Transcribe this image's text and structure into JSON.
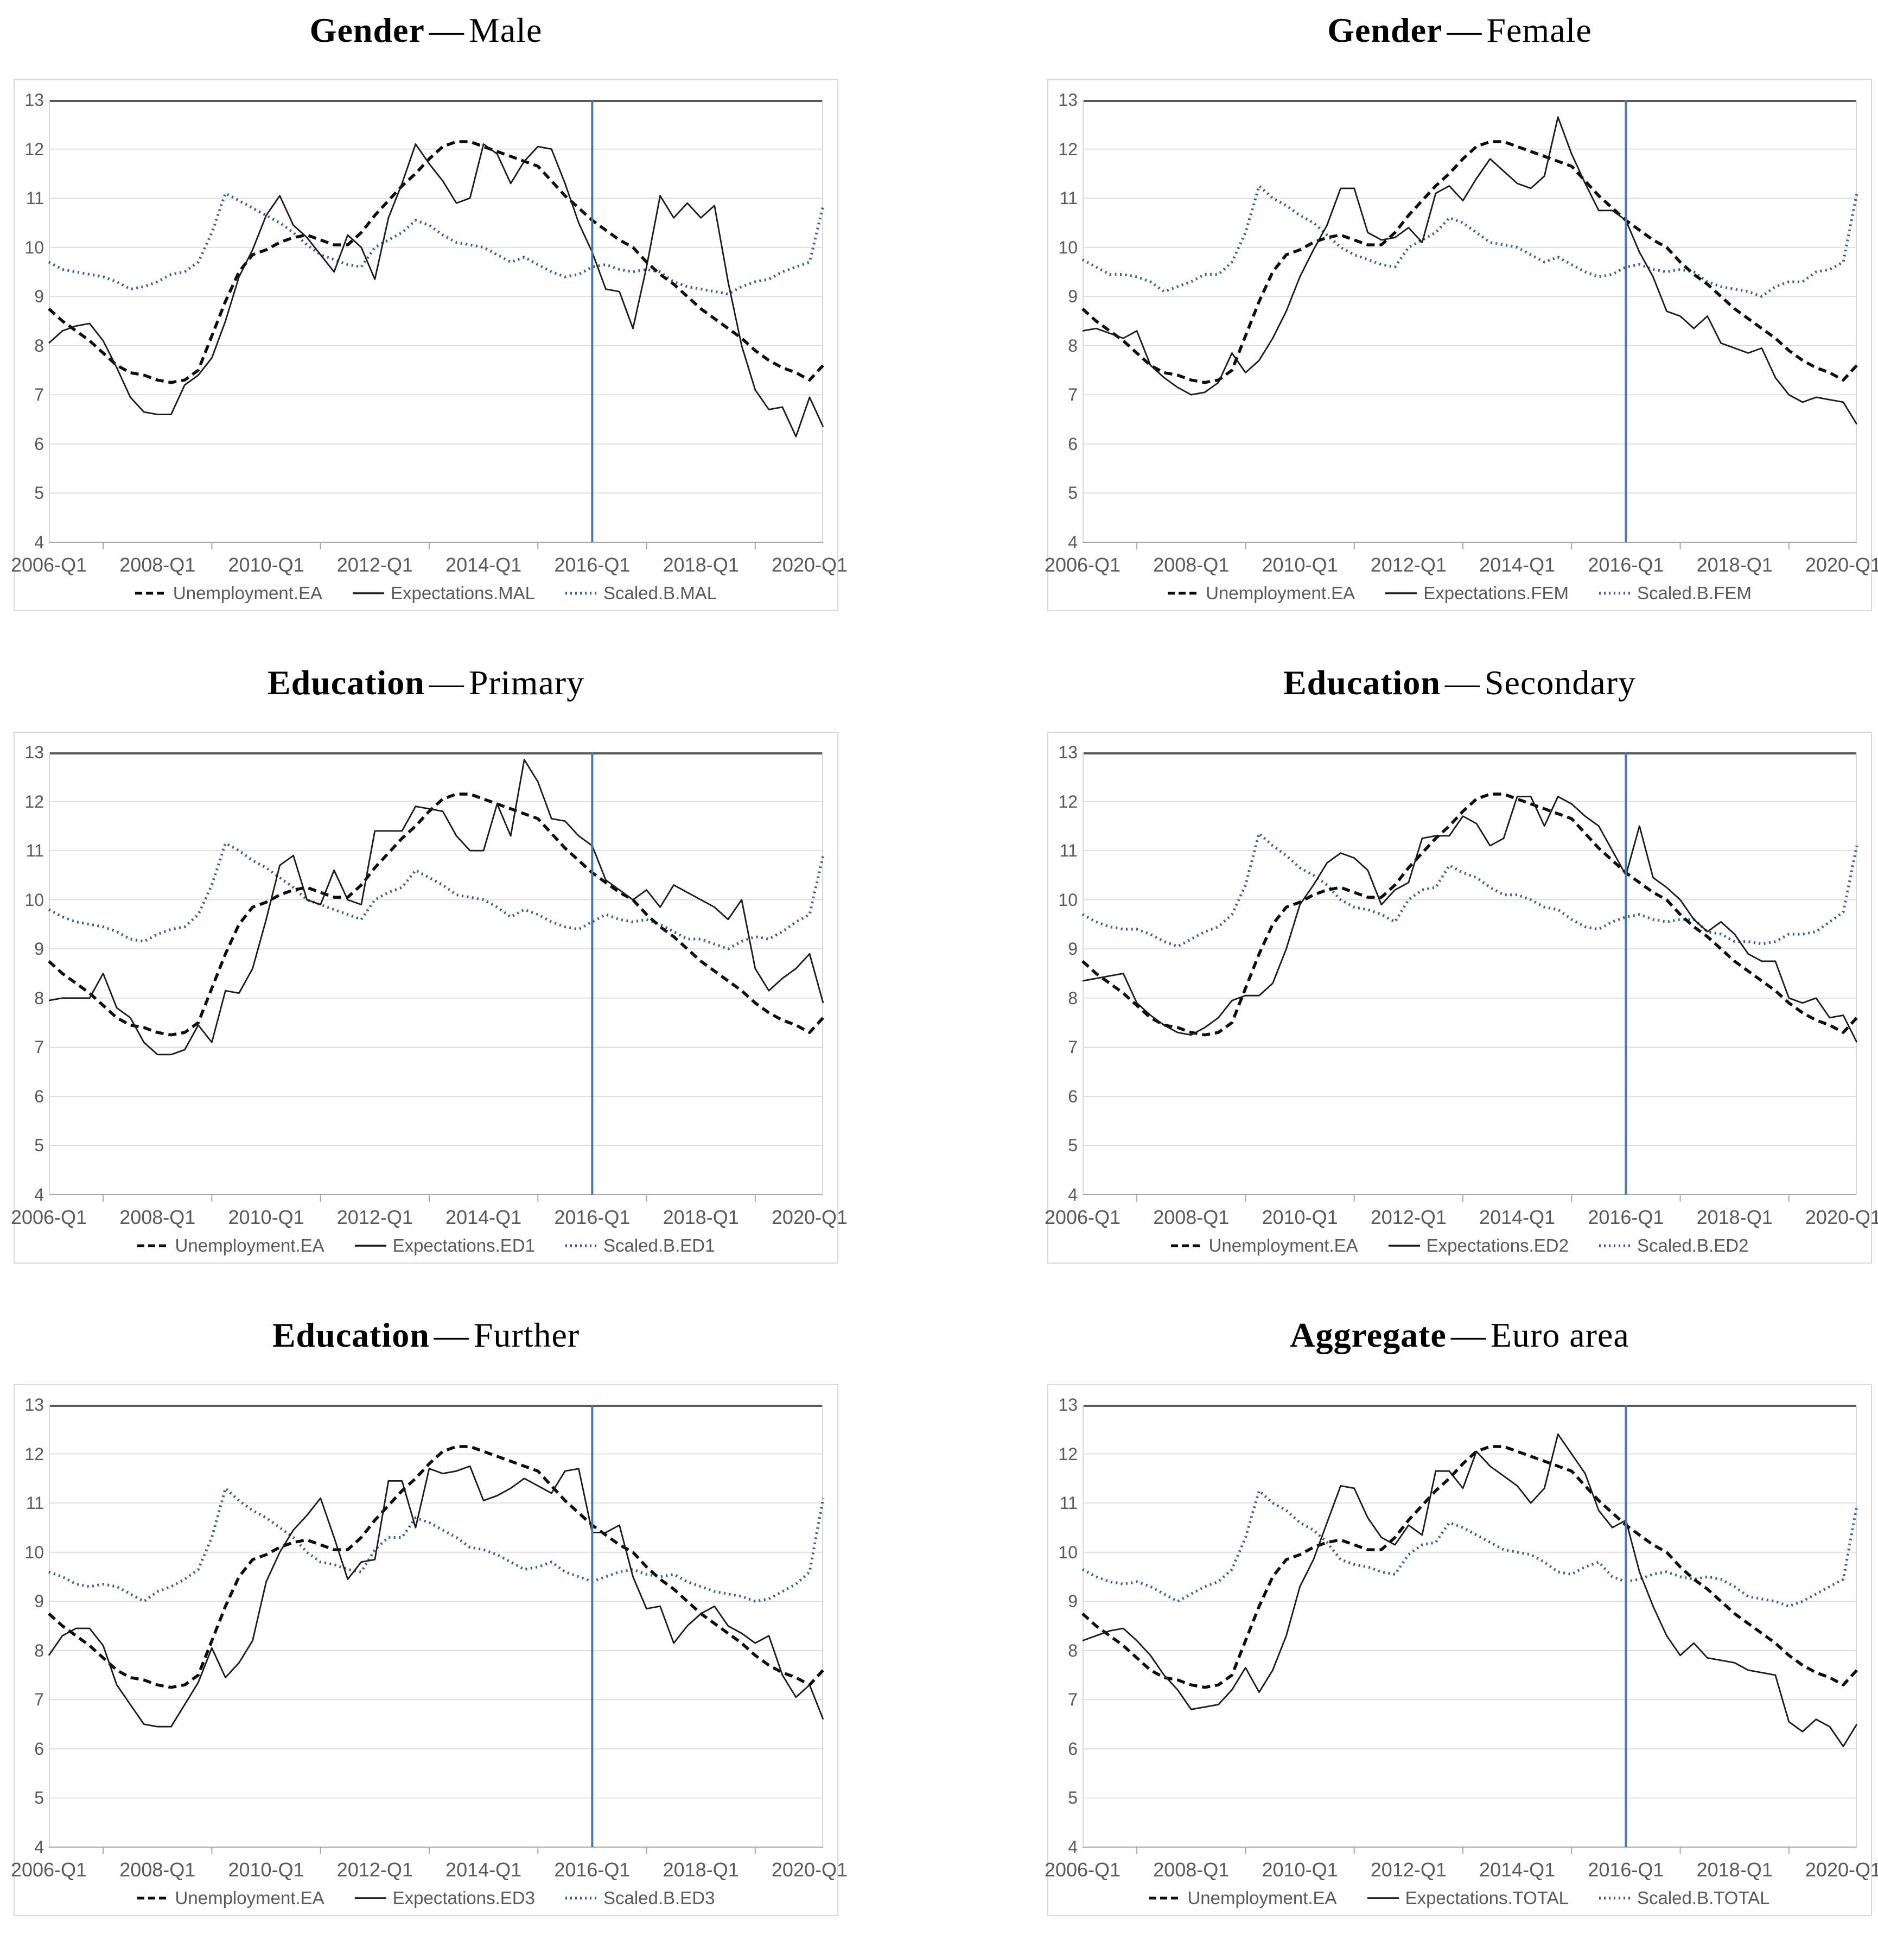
{
  "figure": {
    "description_title_rows": [
      "Gender",
      "Education",
      "Aggregate"
    ]
  },
  "chart_data": {
    "type": "line",
    "grid": true,
    "legend_position": "bottom",
    "ylim": [
      4,
      13
    ],
    "y_ticks": [
      13,
      12,
      11,
      10,
      9,
      8,
      7,
      6,
      5,
      4
    ],
    "x_points": 58,
    "x_tick_labels": [
      "2006-Q1",
      "2008-Q1",
      "2010-Q1",
      "2012-Q1",
      "2014-Q1",
      "2016-Q1",
      "2018-Q1",
      "2020-Q1"
    ],
    "x_tick_label_indices": [
      0,
      8,
      16,
      24,
      32,
      40,
      48,
      56
    ],
    "x_minor_tick_indices": [
      4,
      12,
      20,
      28,
      36,
      44,
      52
    ],
    "vline_index": 40,
    "colors": {
      "unemployment_line": "#0d0d0d",
      "expectations_line": "#1a1a1a",
      "scaled_b_line": "#366092",
      "event_vline": "#4679a8",
      "gridline": "#d9d9d9",
      "plot_top_border": "#595959",
      "axis_line": "#a6a6a6",
      "axis_text": "#595959"
    },
    "shared_series": {
      "name": "Unemployment.EA",
      "values": [
        8.75,
        8.5,
        8.3,
        8.1,
        7.85,
        7.6,
        7.45,
        7.4,
        7.3,
        7.25,
        7.3,
        7.5,
        8.2,
        8.9,
        9.5,
        9.85,
        9.95,
        10.1,
        10.2,
        10.25,
        10.15,
        10.05,
        10.05,
        10.3,
        10.65,
        10.95,
        11.25,
        11.5,
        11.8,
        12.05,
        12.15,
        12.15,
        12.05,
        11.95,
        11.85,
        11.75,
        11.65,
        11.35,
        11.05,
        10.8,
        10.55,
        10.35,
        10.15,
        10.0,
        9.7,
        9.45,
        9.25,
        9.0,
        8.75,
        8.55,
        8.35,
        8.15,
        7.9,
        7.7,
        7.55,
        7.45,
        7.3,
        7.6
      ]
    },
    "charts": [
      {
        "title_bold": "Gender",
        "title_sep": "—",
        "title_rest": "Male",
        "legend": [
          "Unemployment.EA",
          "Expectations.MAL",
          "Scaled.B.MAL"
        ],
        "expectations": {
          "name": "Expectations.MAL",
          "values": [
            8.05,
            8.3,
            8.4,
            8.45,
            8.1,
            7.55,
            6.95,
            6.65,
            6.6,
            6.6,
            7.2,
            7.4,
            7.75,
            8.5,
            9.4,
            9.95,
            10.65,
            11.05,
            10.45,
            10.2,
            9.85,
            9.5,
            10.25,
            10.0,
            9.35,
            10.6,
            11.3,
            12.1,
            11.7,
            11.35,
            10.9,
            11.0,
            12.1,
            11.9,
            11.3,
            11.75,
            12.05,
            12.0,
            11.3,
            10.5,
            9.9,
            9.15,
            9.1,
            8.35,
            9.6,
            11.05,
            10.6,
            10.9,
            10.6,
            10.85,
            9.3,
            8.0,
            7.1,
            6.7,
            6.75,
            6.15,
            6.95,
            6.35
          ]
        },
        "scaled_b": {
          "name": "Scaled.B.MAL",
          "values": [
            9.7,
            9.55,
            9.5,
            9.45,
            9.4,
            9.3,
            9.15,
            9.2,
            9.3,
            9.45,
            9.5,
            9.7,
            10.3,
            11.1,
            10.95,
            10.8,
            10.65,
            10.5,
            10.3,
            10.05,
            9.85,
            9.75,
            9.65,
            9.6,
            10.0,
            10.15,
            10.3,
            10.55,
            10.45,
            10.25,
            10.1,
            10.05,
            10.0,
            9.85,
            9.7,
            9.8,
            9.65,
            9.5,
            9.4,
            9.45,
            9.6,
            9.65,
            9.55,
            9.5,
            9.55,
            9.5,
            9.3,
            9.2,
            9.15,
            9.1,
            9.05,
            9.2,
            9.3,
            9.35,
            9.5,
            9.6,
            9.7,
            10.85
          ]
        }
      },
      {
        "title_bold": "Gender",
        "title_sep": "—",
        "title_rest": "Female",
        "legend": [
          "Unemployment.EA",
          "Expectations.FEM",
          "Scaled.B.FEM"
        ],
        "expectations": {
          "name": "Expectations.FEM",
          "values": [
            8.3,
            8.35,
            8.25,
            8.15,
            8.3,
            7.6,
            7.35,
            7.15,
            7.0,
            7.05,
            7.25,
            7.85,
            7.45,
            7.7,
            8.15,
            8.7,
            9.4,
            9.95,
            10.45,
            11.2,
            11.2,
            10.3,
            10.15,
            10.2,
            10.4,
            10.1,
            11.1,
            11.25,
            10.95,
            11.4,
            11.8,
            11.55,
            11.3,
            11.2,
            11.45,
            12.65,
            11.9,
            11.3,
            10.75,
            10.75,
            10.55,
            9.9,
            9.4,
            8.7,
            8.6,
            8.35,
            8.6,
            8.05,
            7.95,
            7.85,
            7.95,
            7.35,
            7.0,
            6.85,
            6.95,
            6.9,
            6.85,
            6.4
          ]
        },
        "scaled_b": {
          "name": "Scaled.B.FEM",
          "values": [
            9.75,
            9.6,
            9.45,
            9.45,
            9.4,
            9.3,
            9.1,
            9.2,
            9.3,
            9.45,
            9.45,
            9.7,
            10.3,
            11.25,
            11.0,
            10.85,
            10.65,
            10.5,
            10.25,
            10.0,
            9.85,
            9.75,
            9.65,
            9.6,
            10.0,
            10.15,
            10.3,
            10.6,
            10.5,
            10.3,
            10.1,
            10.05,
            10.0,
            9.85,
            9.7,
            9.8,
            9.65,
            9.5,
            9.4,
            9.45,
            9.6,
            9.65,
            9.55,
            9.5,
            9.55,
            9.5,
            9.3,
            9.2,
            9.15,
            9.1,
            9.0,
            9.2,
            9.3,
            9.3,
            9.5,
            9.55,
            9.7,
            11.1
          ]
        }
      },
      {
        "title_bold": "Education",
        "title_sep": "—",
        "title_rest": "Primary",
        "legend": [
          "Unemployment.EA",
          "Expectations.ED1",
          "Scaled.B.ED1"
        ],
        "expectations": {
          "name": "Expectations.ED1",
          "values": [
            7.95,
            8.0,
            8.0,
            8.0,
            8.5,
            7.8,
            7.6,
            7.1,
            6.85,
            6.85,
            6.95,
            7.45,
            7.1,
            8.15,
            8.1,
            8.6,
            9.6,
            10.7,
            10.9,
            10.0,
            9.9,
            10.6,
            10.0,
            9.9,
            11.4,
            11.4,
            11.4,
            11.9,
            11.85,
            11.8,
            11.3,
            11.0,
            11.0,
            11.95,
            11.3,
            12.85,
            12.4,
            11.65,
            11.6,
            11.3,
            11.1,
            10.4,
            10.2,
            10.0,
            10.2,
            9.85,
            10.3,
            10.15,
            10.0,
            9.85,
            9.6,
            10.0,
            8.6,
            8.15,
            8.4,
            8.6,
            8.9,
            7.9
          ]
        },
        "scaled_b": {
          "name": "Scaled.B.ED1",
          "values": [
            9.8,
            9.65,
            9.55,
            9.5,
            9.45,
            9.35,
            9.2,
            9.15,
            9.3,
            9.4,
            9.45,
            9.7,
            10.3,
            11.15,
            11.0,
            10.8,
            10.65,
            10.45,
            10.25,
            10.0,
            9.9,
            9.8,
            9.7,
            9.6,
            10.0,
            10.15,
            10.25,
            10.6,
            10.45,
            10.3,
            10.1,
            10.05,
            10.0,
            9.85,
            9.65,
            9.8,
            9.7,
            9.55,
            9.45,
            9.4,
            9.55,
            9.7,
            9.6,
            9.55,
            9.6,
            9.5,
            9.35,
            9.2,
            9.2,
            9.1,
            9.0,
            9.15,
            9.25,
            9.2,
            9.35,
            9.55,
            9.7,
            10.9
          ]
        }
      },
      {
        "title_bold": "Education",
        "title_sep": "—",
        "title_rest": "Secondary",
        "legend": [
          "Unemployment.EA",
          "Expectations.ED2",
          "Scaled.B.ED2"
        ],
        "expectations": {
          "name": "Expectations.ED2",
          "values": [
            8.35,
            8.4,
            8.45,
            8.5,
            7.9,
            7.65,
            7.45,
            7.3,
            7.25,
            7.4,
            7.6,
            7.95,
            8.05,
            8.05,
            8.3,
            9.0,
            9.9,
            10.3,
            10.75,
            10.95,
            10.85,
            10.6,
            9.9,
            10.2,
            10.35,
            11.25,
            11.3,
            11.3,
            11.7,
            11.55,
            11.1,
            11.25,
            12.1,
            12.1,
            11.5,
            12.1,
            11.95,
            11.7,
            11.5,
            11.0,
            10.5,
            11.5,
            10.45,
            10.25,
            10.0,
            9.6,
            9.35,
            9.55,
            9.3,
            8.9,
            8.75,
            8.75,
            8.0,
            7.9,
            8.0,
            7.6,
            7.65,
            7.1
          ]
        },
        "scaled_b": {
          "name": "Scaled.B.ED2",
          "values": [
            9.7,
            9.55,
            9.45,
            9.4,
            9.4,
            9.3,
            9.15,
            9.05,
            9.2,
            9.35,
            9.45,
            9.7,
            10.3,
            11.35,
            11.1,
            10.9,
            10.65,
            10.5,
            10.3,
            10.0,
            9.85,
            9.8,
            9.7,
            9.55,
            10.0,
            10.2,
            10.25,
            10.7,
            10.55,
            10.45,
            10.25,
            10.1,
            10.1,
            10.0,
            9.85,
            9.8,
            9.6,
            9.45,
            9.4,
            9.55,
            9.65,
            9.7,
            9.6,
            9.55,
            9.6,
            9.6,
            9.35,
            9.3,
            9.15,
            9.15,
            9.1,
            9.15,
            9.3,
            9.3,
            9.35,
            9.55,
            9.75,
            11.1
          ]
        }
      },
      {
        "title_bold": "Education",
        "title_sep": "—",
        "title_rest": "Further",
        "legend": [
          "Unemployment.EA",
          "Expectations.ED3",
          "Scaled.B.ED3"
        ],
        "expectations": {
          "name": "Expectations.ED3",
          "values": [
            7.9,
            8.3,
            8.45,
            8.45,
            8.1,
            7.3,
            6.9,
            6.5,
            6.45,
            6.45,
            6.9,
            7.35,
            8.05,
            7.45,
            7.75,
            8.2,
            9.4,
            10.0,
            10.45,
            10.75,
            11.1,
            10.3,
            9.45,
            9.8,
            9.85,
            11.45,
            11.45,
            10.5,
            11.7,
            11.6,
            11.65,
            11.75,
            11.05,
            11.15,
            11.3,
            11.5,
            11.35,
            11.2,
            11.65,
            11.7,
            10.4,
            10.4,
            10.55,
            9.5,
            8.85,
            8.9,
            8.15,
            8.5,
            8.75,
            8.9,
            8.5,
            8.35,
            8.15,
            8.3,
            7.5,
            7.05,
            7.3,
            6.6
          ]
        },
        "scaled_b": {
          "name": "Scaled.B.ED3",
          "values": [
            9.6,
            9.5,
            9.35,
            9.3,
            9.35,
            9.3,
            9.15,
            9.0,
            9.2,
            9.3,
            9.45,
            9.65,
            10.3,
            11.3,
            11.05,
            10.85,
            10.7,
            10.5,
            10.3,
            10.0,
            9.8,
            9.75,
            9.65,
            9.6,
            10.05,
            10.3,
            10.3,
            10.7,
            10.6,
            10.45,
            10.3,
            10.1,
            10.05,
            9.95,
            9.8,
            9.65,
            9.7,
            9.8,
            9.6,
            9.5,
            9.4,
            9.5,
            9.6,
            9.65,
            9.55,
            9.5,
            9.55,
            9.4,
            9.3,
            9.2,
            9.15,
            9.1,
            9.0,
            9.05,
            9.2,
            9.35,
            9.6,
            11.1
          ]
        }
      },
      {
        "title_bold": "Aggregate",
        "title_sep": "—",
        "title_rest": "Euro area",
        "legend": [
          "Unemployment.EA",
          "Expectations.TOTAL",
          "Scaled.B.TOTAL"
        ],
        "expectations": {
          "name": "Expectations.TOTAL",
          "values": [
            8.2,
            8.3,
            8.4,
            8.45,
            8.2,
            7.9,
            7.5,
            7.2,
            6.8,
            6.85,
            6.9,
            7.2,
            7.65,
            7.15,
            7.6,
            8.3,
            9.3,
            9.85,
            10.6,
            11.35,
            11.3,
            10.7,
            10.3,
            10.15,
            10.55,
            10.35,
            11.65,
            11.65,
            11.3,
            12.05,
            11.75,
            11.55,
            11.35,
            11.0,
            11.3,
            12.4,
            12.0,
            11.6,
            10.85,
            10.5,
            10.65,
            9.6,
            8.9,
            8.3,
            7.9,
            8.15,
            7.85,
            7.8,
            7.75,
            7.6,
            7.55,
            7.5,
            6.55,
            6.35,
            6.6,
            6.45,
            6.05,
            6.5
          ]
        },
        "scaled_b": {
          "name": "Scaled.B.TOTAL",
          "values": [
            9.65,
            9.5,
            9.4,
            9.35,
            9.4,
            9.3,
            9.15,
            9.0,
            9.15,
            9.3,
            9.4,
            9.65,
            10.3,
            11.25,
            11.0,
            10.85,
            10.6,
            10.45,
            10.2,
            9.85,
            9.75,
            9.7,
            9.6,
            9.55,
            9.95,
            10.15,
            10.2,
            10.6,
            10.5,
            10.35,
            10.2,
            10.05,
            10.0,
            9.95,
            9.8,
            9.6,
            9.55,
            9.7,
            9.8,
            9.5,
            9.4,
            9.45,
            9.55,
            9.6,
            9.5,
            9.45,
            9.5,
            9.45,
            9.3,
            9.1,
            9.05,
            9.0,
            8.9,
            9.0,
            9.15,
            9.3,
            9.45,
            10.95
          ]
        }
      }
    ]
  }
}
